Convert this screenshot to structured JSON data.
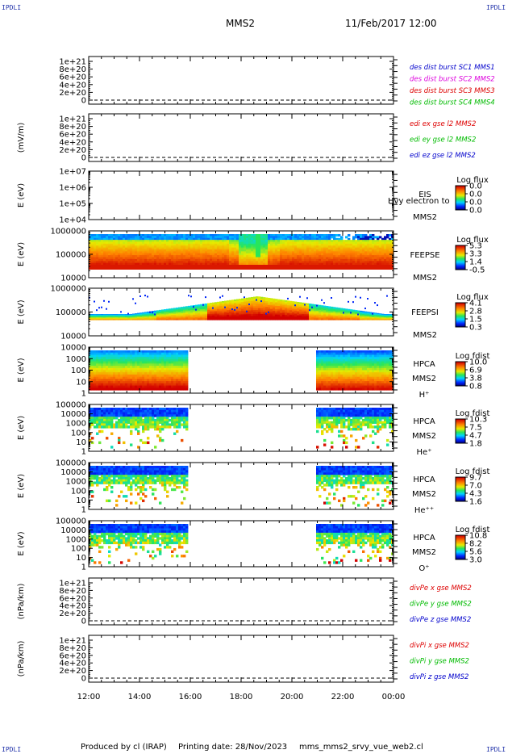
{
  "corner_label": "IPDLI",
  "header": {
    "spacecraft": "MMS2",
    "datetime": "11/Feb/2017 12:00"
  },
  "footer": {
    "produced_by": "Produced by cl (IRAP)",
    "printing_date": "Printing date: 28/Nov/2023",
    "file": "mms_mms2_srvy_vue_web2.cl"
  },
  "time_axis": [
    "12:00",
    "14:00",
    "16:00",
    "18:00",
    "20:00",
    "22:00",
    "00:00"
  ],
  "panels": [
    {
      "id": "des",
      "ylabel": "",
      "yticks": [
        "1e+21",
        "8e+20",
        "6e+20",
        "4e+20",
        "2e+20",
        "0"
      ],
      "legend": [
        {
          "text": "des dist burst SC1 MMS1",
          "color": "#0000cc"
        },
        {
          "text": "des dist burst SC2 MMS2",
          "color": "#dd00dd"
        },
        {
          "text": "des dist burst SC3 MMS3",
          "color": "#dd0000"
        },
        {
          "text": "des dist burst SC4 MMS4",
          "color": "#00bb00"
        }
      ]
    },
    {
      "id": "edi",
      "ylabel": "(mV/m)",
      "yticks": [
        "1e+21",
        "8e+20",
        "6e+20",
        "4e+20",
        "2e+20",
        "0"
      ],
      "legend": [
        {
          "text": "edi ex gse l2 MMS2",
          "color": "#dd0000"
        },
        {
          "text": "edi ey gse l2 MMS2",
          "color": "#00bb00"
        },
        {
          "text": "edi ez gse l2 MMS2",
          "color": "#0000cc"
        }
      ]
    },
    {
      "id": "eis",
      "ylabel": "E (eV)",
      "yticks": [
        "1e+07",
        "1e+06",
        "1e+05",
        "1e+04"
      ],
      "instrument": [
        "EIS",
        "MMS2"
      ],
      "overlay": "Hvy electron to",
      "colorbar": {
        "title": "Log flux",
        "ticks": [
          "0.0",
          "0.0",
          "0.0",
          "0.0"
        ]
      }
    },
    {
      "id": "feepse",
      "ylabel": "E (eV)",
      "yticks": [
        "1000000",
        "100000",
        "10000"
      ],
      "instrument": [
        "FEEPSE",
        "MMS2"
      ],
      "colorbar": {
        "title": "Log flux",
        "ticks": [
          "5.3",
          "3.3",
          "1.4",
          "-0.5"
        ]
      }
    },
    {
      "id": "feepsi",
      "ylabel": "E (eV)",
      "yticks": [
        "1000000",
        "100000",
        "10000"
      ],
      "instrument": [
        "FEEPSI",
        "MMS2"
      ],
      "colorbar": {
        "title": "Log flux",
        "ticks": [
          "4.1",
          "2.8",
          "1.5",
          "0.3"
        ]
      }
    },
    {
      "id": "hpca_h",
      "ylabel": "E (eV)",
      "yticks": [
        "10000",
        "1000",
        "100",
        "10",
        "1"
      ],
      "instrument": [
        "HPCA",
        "MMS2",
        "H⁺"
      ],
      "colorbar": {
        "title": "Log fdist",
        "ticks": [
          "10.0",
          "6.9",
          "3.8",
          "0.8"
        ]
      }
    },
    {
      "id": "hpca_he",
      "ylabel": "E (eV)",
      "yticks": [
        "100000",
        "10000",
        "1000",
        "100",
        "10",
        "1"
      ],
      "instrument": [
        "HPCA",
        "MMS2",
        "He⁺"
      ],
      "colorbar": {
        "title": "Log fdist",
        "ticks": [
          "10.3",
          "7.5",
          "4.7",
          "1.8"
        ]
      }
    },
    {
      "id": "hpca_hepp",
      "ylabel": "E (eV)",
      "yticks": [
        "100000",
        "10000",
        "1000",
        "100",
        "10",
        "1"
      ],
      "instrument": [
        "HPCA",
        "MMS2",
        "He⁺⁺"
      ],
      "colorbar": {
        "title": "Log fdist",
        "ticks": [
          "9.7",
          "7.0",
          "4.3",
          "1.6"
        ]
      }
    },
    {
      "id": "hpca_o",
      "ylabel": "E (eV)",
      "yticks": [
        "100000",
        "10000",
        "1000",
        "100",
        "10",
        "1"
      ],
      "instrument": [
        "HPCA",
        "MMS2",
        "O⁺"
      ],
      "colorbar": {
        "title": "Log fdist",
        "ticks": [
          "10.8",
          "8.2",
          "5.6",
          "3.0"
        ]
      }
    },
    {
      "id": "divpe",
      "ylabel": "(nPa/km)",
      "yticks": [
        "1e+21",
        "8e+20",
        "6e+20",
        "4e+20",
        "2e+20",
        "0"
      ],
      "legend": [
        {
          "text": "divPe x gse MMS2",
          "color": "#dd0000"
        },
        {
          "text": "divPe y gse MMS2",
          "color": "#00bb00"
        },
        {
          "text": "divPe z gse MMS2",
          "color": "#0000cc"
        }
      ]
    },
    {
      "id": "divpi",
      "ylabel": "(nPa/km)",
      "yticks": [
        "1e+21",
        "8e+20",
        "6e+20",
        "4e+20",
        "2e+20",
        "0"
      ],
      "legend": [
        {
          "text": "divPi x gse MMS2",
          "color": "#dd0000"
        },
        {
          "text": "divPi y gse MMS2",
          "color": "#00bb00"
        },
        {
          "text": "divPi z gse MMS2",
          "color": "#0000cc"
        }
      ]
    }
  ],
  "chart_data": {
    "type": "heatmap",
    "title": "MMS2 11/Feb/2017 12:00",
    "xlabel": "",
    "x_range": [
      "12:00",
      "00:00"
    ],
    "spectrograms": [
      {
        "name": "FEEPSE",
        "unit": "Log flux",
        "range": [
          -0.5,
          5.3
        ],
        "coverage": [
          "12:00",
          "00:00"
        ]
      },
      {
        "name": "FEEPSI",
        "unit": "Log flux",
        "range": [
          0.3,
          4.1
        ],
        "coverage": [
          "12:00",
          "00:00"
        ]
      },
      {
        "name": "HPCA H+",
        "unit": "Log fdist",
        "range": [
          0.8,
          10.0
        ],
        "coverage": [
          [
            "12:00",
            "15:50"
          ],
          [
            "20:55",
            "00:00"
          ]
        ]
      },
      {
        "name": "HPCA He+",
        "unit": "Log fdist",
        "range": [
          1.8,
          10.3
        ],
        "coverage": [
          [
            "12:00",
            "15:50"
          ],
          [
            "20:55",
            "00:00"
          ]
        ]
      },
      {
        "name": "HPCA He++",
        "unit": "Log fdist",
        "range": [
          1.6,
          9.7
        ],
        "coverage": [
          [
            "12:00",
            "15:50"
          ],
          [
            "20:55",
            "00:00"
          ]
        ]
      },
      {
        "name": "HPCA O+",
        "unit": "Log fdist",
        "range": [
          3.0,
          10.8
        ],
        "coverage": [
          [
            "12:00",
            "15:50"
          ],
          [
            "20:55",
            "00:00"
          ]
        ]
      }
    ]
  }
}
